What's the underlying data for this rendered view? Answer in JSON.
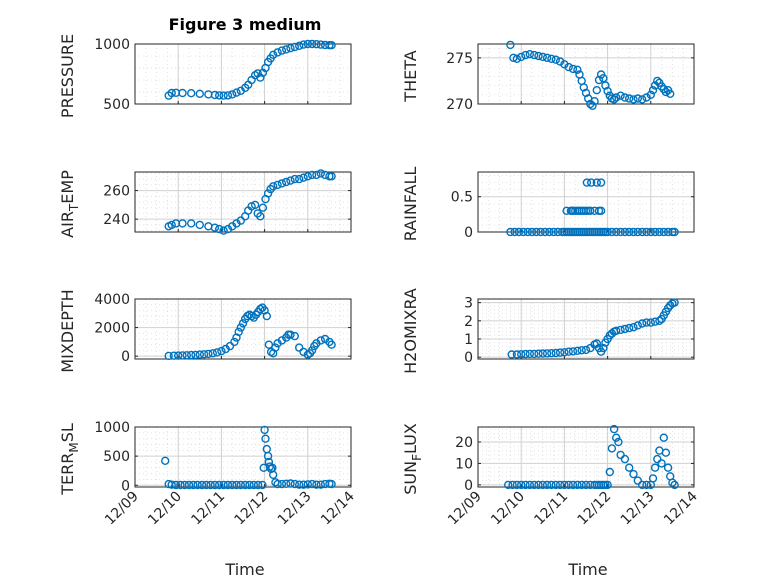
{
  "figure_title": "Figure 3 medium",
  "colors": {
    "marker": "#0072BD",
    "axis": "#262626",
    "grid": "#d0d0d0"
  },
  "xticks": [
    "12/09",
    "12/10",
    "12/11",
    "12/12",
    "12/13",
    "12/14"
  ],
  "xlabel": "Time",
  "chart_data": [
    {
      "id": "pressure",
      "type": "scatter",
      "ylabel": "PRESSURE",
      "ylim": [
        500,
        1000
      ],
      "yticks": [
        500,
        1000
      ],
      "grid": true,
      "x": [
        0.78,
        0.85,
        0.95,
        1.1,
        1.3,
        1.5,
        1.7,
        1.85,
        1.95,
        2.05,
        2.15,
        2.25,
        2.35,
        2.45,
        2.55,
        2.62,
        2.7,
        2.78,
        2.84,
        2.9,
        2.96,
        3.02,
        3.08,
        3.14,
        3.2,
        3.3,
        3.4,
        3.5,
        3.6,
        3.7,
        3.8,
        3.9,
        4.0,
        4.1,
        4.2,
        4.3,
        4.4,
        4.5,
        4.55
      ],
      "y": [
        570,
        592,
        593,
        592,
        590,
        585,
        580,
        575,
        572,
        570,
        572,
        580,
        595,
        610,
        635,
        660,
        700,
        740,
        755,
        720,
        760,
        800,
        850,
        880,
        910,
        930,
        945,
        955,
        965,
        975,
        985,
        995,
        1000,
        1000,
        998,
        995,
        992,
        990,
        990
      ]
    },
    {
      "id": "theta",
      "type": "scatter",
      "ylabel": "THETA",
      "ylim": [
        270,
        276.5
      ],
      "yticks": [
        270,
        275
      ],
      "grid": true,
      "x": [
        0.75,
        0.82,
        0.9,
        1.0,
        1.1,
        1.2,
        1.3,
        1.4,
        1.5,
        1.6,
        1.7,
        1.8,
        1.9,
        2.0,
        2.1,
        2.2,
        2.3,
        2.35,
        2.4,
        2.45,
        2.5,
        2.55,
        2.6,
        2.65,
        2.7,
        2.75,
        2.8,
        2.85,
        2.9,
        2.95,
        3.0,
        3.05,
        3.1,
        3.15,
        3.2,
        3.3,
        3.4,
        3.5,
        3.6,
        3.7,
        3.8,
        3.9,
        4.0,
        4.05,
        4.1,
        4.15,
        4.2,
        4.25,
        4.3,
        4.35,
        4.4,
        4.45
      ],
      "y": [
        276.4,
        275.0,
        274.9,
        275.1,
        275.3,
        275.4,
        275.3,
        275.2,
        275.1,
        275.0,
        274.9,
        274.8,
        274.6,
        274.3,
        274.0,
        273.8,
        273.7,
        273.2,
        272.5,
        271.8,
        271.2,
        270.6,
        270.0,
        269.8,
        270.3,
        271.5,
        272.6,
        273.2,
        272.8,
        272.0,
        271.4,
        270.9,
        270.6,
        270.5,
        270.7,
        270.9,
        270.7,
        270.6,
        270.5,
        270.6,
        270.5,
        270.7,
        271.0,
        271.5,
        272.0,
        272.5,
        272.3,
        271.9,
        271.6,
        271.3,
        271.5,
        271.1
      ]
    },
    {
      "id": "air_temp",
      "type": "scatter",
      "ylabel": "AIR_TEMP",
      "ylim": [
        231,
        273
      ],
      "yticks": [
        240,
        260
      ],
      "grid": true,
      "x": [
        0.78,
        0.85,
        0.95,
        1.1,
        1.3,
        1.5,
        1.7,
        1.85,
        1.95,
        2.05,
        2.15,
        2.25,
        2.35,
        2.45,
        2.55,
        2.62,
        2.7,
        2.78,
        2.84,
        2.9,
        2.96,
        3.02,
        3.08,
        3.14,
        3.2,
        3.3,
        3.4,
        3.5,
        3.6,
        3.7,
        3.8,
        3.9,
        4.0,
        4.1,
        4.2,
        4.3,
        4.4,
        4.5,
        4.55
      ],
      "y": [
        235,
        236,
        237,
        237,
        237,
        236,
        235,
        234,
        233,
        232,
        233,
        235,
        237,
        239,
        242,
        246,
        249,
        250,
        244,
        242,
        248,
        254,
        258,
        261,
        263,
        264,
        265,
        266,
        267,
        268,
        268,
        269,
        270,
        271,
        271,
        272,
        271,
        270,
        270
      ]
    },
    {
      "id": "rainfall",
      "type": "scatter",
      "ylabel": "RAINFALL",
      "ylim": [
        0,
        0.85
      ],
      "yticks": [
        0,
        0.5
      ],
      "grid": true,
      "x": [
        0.75,
        0.85,
        0.95,
        1.05,
        1.15,
        1.25,
        1.35,
        1.45,
        1.55,
        1.65,
        1.75,
        1.85,
        1.95,
        2.0,
        2.05,
        2.1,
        2.15,
        2.2,
        2.25,
        2.3,
        2.35,
        2.4,
        2.45,
        2.5,
        2.55,
        2.6,
        2.65,
        2.7,
        2.75,
        2.8,
        2.85,
        2.9,
        2.95,
        3.0,
        3.1,
        3.2,
        3.3,
        3.4,
        3.5,
        3.6,
        3.7,
        3.8,
        3.9,
        4.0,
        4.1,
        4.2,
        4.3,
        4.4,
        4.5,
        4.55,
        2.05,
        2.15,
        2.2,
        2.25,
        2.3,
        2.35,
        2.4,
        2.45,
        2.5,
        2.55,
        2.6,
        2.7,
        2.8,
        2.85,
        2.52,
        2.62,
        2.75,
        2.85,
        2.18
      ],
      "y": [
        0,
        0,
        0,
        0,
        0,
        0,
        0,
        0,
        0,
        0,
        0,
        0,
        0,
        0,
        0,
        0,
        0,
        0,
        0,
        0,
        0,
        0,
        0,
        0,
        0,
        0,
        0,
        0,
        0,
        0,
        0,
        0,
        0,
        0,
        0,
        0,
        0,
        0,
        0,
        0,
        0,
        0,
        0,
        0,
        0,
        0,
        0,
        0,
        0,
        0,
        0.3,
        0.3,
        0.3,
        0.3,
        0.3,
        0.3,
        0.3,
        0.3,
        0.3,
        0.3,
        0.3,
        0.3,
        0.3,
        0.3,
        0.7,
        0.7,
        0.7,
        0.7,
        0.3
      ]
    },
    {
      "id": "mixdepth",
      "type": "scatter",
      "ylabel": "MIXDEPTH",
      "ylim": [
        -200,
        4000
      ],
      "yticks": [
        0,
        2000,
        4000
      ],
      "grid": true,
      "x": [
        0.78,
        0.9,
        1.0,
        1.1,
        1.2,
        1.3,
        1.4,
        1.5,
        1.6,
        1.7,
        1.8,
        1.9,
        2.0,
        2.1,
        2.2,
        2.3,
        2.35,
        2.4,
        2.45,
        2.5,
        2.55,
        2.6,
        2.65,
        2.7,
        2.75,
        2.8,
        2.85,
        2.9,
        2.95,
        3.0,
        3.05,
        3.1,
        3.15,
        3.2,
        3.25,
        3.3,
        3.4,
        3.5,
        3.55,
        3.6,
        3.7,
        3.8,
        3.9,
        4.0,
        4.05,
        4.1,
        4.15,
        4.2,
        4.3,
        4.4,
        4.5,
        4.55
      ],
      "y": [
        20,
        30,
        40,
        50,
        60,
        70,
        90,
        110,
        130,
        160,
        200,
        260,
        350,
        500,
        700,
        1000,
        1300,
        1700,
        2000,
        2300,
        2600,
        2800,
        2900,
        2800,
        2700,
        2900,
        3100,
        3300,
        3400,
        3200,
        2800,
        800,
        300,
        200,
        600,
        900,
        1100,
        1300,
        1500,
        1500,
        1400,
        600,
        300,
        100,
        200,
        400,
        700,
        900,
        1100,
        1200,
        1000,
        800
      ]
    },
    {
      "id": "h2omixra",
      "type": "scatter",
      "ylabel": "H2OMIXRA",
      "ylim": [
        -0.1,
        3.2
      ],
      "yticks": [
        0,
        1,
        2,
        3
      ],
      "grid": true,
      "x": [
        0.78,
        0.9,
        1.0,
        1.1,
        1.2,
        1.3,
        1.4,
        1.5,
        1.6,
        1.7,
        1.8,
        1.9,
        2.0,
        2.1,
        2.2,
        2.3,
        2.4,
        2.5,
        2.6,
        2.7,
        2.75,
        2.8,
        2.85,
        2.9,
        2.95,
        3.0,
        3.05,
        3.1,
        3.15,
        3.2,
        3.3,
        3.4,
        3.5,
        3.6,
        3.7,
        3.8,
        3.9,
        4.0,
        4.1,
        4.2,
        4.25,
        4.3,
        4.35,
        4.4,
        4.45,
        4.5,
        4.55
      ],
      "y": [
        0.15,
        0.15,
        0.16,
        0.17,
        0.18,
        0.18,
        0.19,
        0.2,
        0.21,
        0.22,
        0.23,
        0.25,
        0.27,
        0.3,
        0.32,
        0.35,
        0.38,
        0.4,
        0.5,
        0.7,
        0.75,
        0.5,
        0.3,
        0.5,
        0.8,
        1.0,
        1.2,
        1.3,
        1.4,
        1.45,
        1.5,
        1.55,
        1.6,
        1.65,
        1.75,
        1.85,
        1.9,
        1.9,
        1.95,
        2.0,
        2.1,
        2.3,
        2.5,
        2.7,
        2.85,
        2.95,
        3.0
      ]
    },
    {
      "id": "terr_msl",
      "type": "scatter",
      "ylabel": "TERR_MSL",
      "ylim": [
        -30,
        1000
      ],
      "yticks": [
        0,
        500,
        1000
      ],
      "grid": true,
      "x": [
        0.7,
        0.78,
        0.85,
        0.95,
        1.05,
        1.15,
        1.25,
        1.35,
        1.45,
        1.55,
        1.65,
        1.75,
        1.85,
        1.95,
        2.05,
        2.15,
        2.25,
        2.35,
        2.45,
        2.55,
        2.65,
        2.75,
        2.85,
        2.95,
        2.98,
        3.0,
        3.02,
        3.05,
        3.08,
        3.1,
        3.12,
        3.15,
        3.18,
        3.2,
        3.25,
        3.3,
        3.4,
        3.5,
        3.6,
        3.7,
        3.8,
        3.9,
        4.0,
        4.1,
        4.2,
        4.3,
        4.4,
        4.5,
        4.55
      ],
      "y": [
        420,
        20,
        10,
        5,
        5,
        5,
        5,
        5,
        5,
        5,
        5,
        5,
        5,
        5,
        5,
        5,
        5,
        5,
        5,
        5,
        5,
        5,
        5,
        5,
        300,
        950,
        800,
        620,
        500,
        400,
        320,
        280,
        300,
        180,
        50,
        20,
        20,
        25,
        30,
        20,
        10,
        10,
        15,
        20,
        10,
        10,
        20,
        25,
        20
      ]
    },
    {
      "id": "sun_flux",
      "type": "scatter",
      "ylabel": "SUN_FLUX",
      "ylim": [
        -1,
        27
      ],
      "yticks": [
        0,
        10,
        20
      ],
      "grid": true,
      "x": [
        0.7,
        0.8,
        0.9,
        1.0,
        1.1,
        1.2,
        1.3,
        1.4,
        1.5,
        1.6,
        1.7,
        1.8,
        1.9,
        2.0,
        2.1,
        2.2,
        2.3,
        2.4,
        2.5,
        2.6,
        2.7,
        2.75,
        2.8,
        2.85,
        2.9,
        2.95,
        3.0,
        3.05,
        3.1,
        3.15,
        3.2,
        3.25,
        3.3,
        3.4,
        3.5,
        3.6,
        3.7,
        3.8,
        3.9,
        4.0,
        4.05,
        4.1,
        4.15,
        4.2,
        4.25,
        4.3,
        4.35,
        4.4,
        4.45,
        4.5,
        4.55
      ],
      "y": [
        0,
        0,
        0,
        0,
        0,
        0,
        0,
        0,
        0,
        0,
        0,
        0,
        0,
        0,
        0,
        0,
        0,
        0,
        0,
        0,
        0,
        0,
        0,
        0,
        0,
        0,
        0,
        6,
        17,
        26,
        22,
        20,
        14,
        12,
        8,
        5,
        2,
        0,
        0,
        0,
        3,
        8,
        12,
        16,
        10,
        22,
        15,
        8,
        4,
        1,
        0
      ]
    }
  ]
}
